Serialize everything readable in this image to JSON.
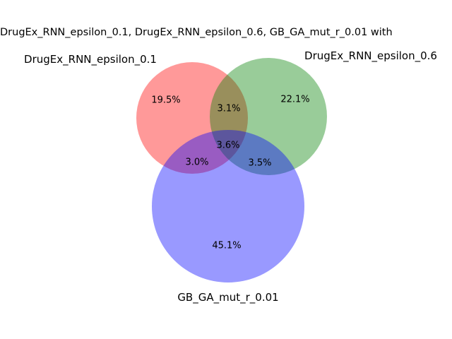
{
  "chart_data": {
    "type": "venn",
    "title": "DrugEx_RNN_epsilon_0.1, DrugEx_RNN_epsilon_0.6, GB_GA_mut_r_0.01 with",
    "sets": [
      {
        "id": "A",
        "name": "DrugEx_RNN_epsilon_0.1",
        "color": "#ff0000",
        "only_percent": 19.5
      },
      {
        "id": "B",
        "name": "DrugEx_RNN_epsilon_0.6",
        "color": "#008000",
        "only_percent": 22.1
      },
      {
        "id": "C",
        "name": "GB_GA_mut_r_0.01",
        "color": "#0000ff",
        "only_percent": 45.1
      }
    ],
    "regions": [
      {
        "sets": "A",
        "label": "19.5%",
        "value": 19.5
      },
      {
        "sets": "B",
        "label": "22.1%",
        "value": 22.1
      },
      {
        "sets": "C",
        "label": "45.1%",
        "value": 45.1
      },
      {
        "sets": "AB",
        "label": "3.1%",
        "value": 3.1
      },
      {
        "sets": "AC",
        "label": "3.0%",
        "value": 3.0
      },
      {
        "sets": "BC",
        "label": "3.5%",
        "value": 3.5
      },
      {
        "sets": "ABC",
        "label": "3.6%",
        "value": 3.6
      }
    ],
    "fill_opacity": 0.4
  }
}
